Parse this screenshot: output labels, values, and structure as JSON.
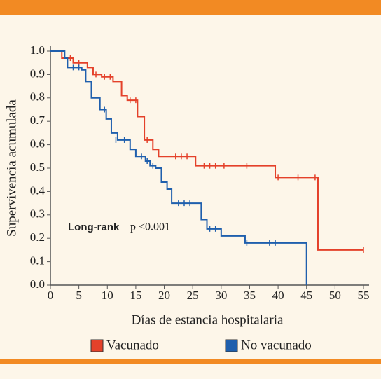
{
  "chart_data": {
    "type": "step",
    "ylabel": "Supervivencia acumulada",
    "xlabel": "Días de estancia hospitalaria",
    "annotation": "Long-rank",
    "annotation_text": "p <0.001",
    "xlim": [
      0,
      55
    ],
    "ylim": [
      0,
      1
    ],
    "xticks": [
      0,
      5,
      10,
      15,
      20,
      25,
      30,
      35,
      40,
      45,
      50,
      55
    ],
    "yticks": [
      {
        "value": 0,
        "label": "0.0"
      },
      0.1,
      0.2,
      0.3,
      0.4,
      0.5,
      0.6,
      0.7,
      0.8,
      0.9,
      {
        "value": 1,
        "label": "1.0"
      }
    ],
    "series": [
      {
        "name": "Vacunado",
        "color": "#e4412a",
        "x": [
          0,
          2,
          4,
          6.5,
          7.5,
          9,
          11,
          12.5,
          13.5,
          15.3,
          16.5,
          18,
          19,
          25.5,
          39.5,
          47,
          55
        ],
        "values": [
          1,
          0.97,
          0.95,
          0.93,
          0.9,
          0.89,
          0.87,
          0.81,
          0.79,
          0.72,
          0.62,
          0.58,
          0.55,
          0.51,
          0.46,
          0.15,
          0.15
        ],
        "censor_x": [
          3.5,
          5,
          8,
          9.5,
          10.5,
          14,
          15,
          17,
          22,
          23,
          24,
          27,
          28,
          29,
          30.5,
          34.5,
          40,
          43.5,
          46.5,
          55
        ],
        "censor_values": [
          0.97,
          0.95,
          0.9,
          0.89,
          0.89,
          0.79,
          0.79,
          0.62,
          0.55,
          0.55,
          0.55,
          0.51,
          0.51,
          0.51,
          0.51,
          0.51,
          0.46,
          0.46,
          0.46,
          0.15
        ]
      },
      {
        "name": "No vacunado",
        "color": "#1f5fad",
        "x": [
          0,
          2.5,
          3,
          5.5,
          6.2,
          7.2,
          8.7,
          9.8,
          10.7,
          11.8,
          14,
          15,
          16.7,
          17.5,
          18.5,
          19.5,
          20.5,
          21.3,
          26.5,
          27.5,
          30,
          34.2,
          45
        ],
        "values": [
          1,
          0.97,
          0.93,
          0.92,
          0.87,
          0.8,
          0.75,
          0.71,
          0.65,
          0.62,
          0.58,
          0.55,
          0.53,
          0.51,
          0.5,
          0.44,
          0.41,
          0.35,
          0.28,
          0.24,
          0.21,
          0.18,
          0
        ],
        "censor_x": [
          4,
          5,
          9.5,
          11.5,
          13,
          16,
          17,
          18,
          22.5,
          23.5,
          24.5,
          28,
          29,
          34.5,
          38.5,
          39.5
        ],
        "censor_values": [
          0.93,
          0.93,
          0.75,
          0.62,
          0.62,
          0.55,
          0.53,
          0.51,
          0.35,
          0.35,
          0.35,
          0.24,
          0.24,
          0.18,
          0.18,
          0.18
        ]
      }
    ]
  }
}
